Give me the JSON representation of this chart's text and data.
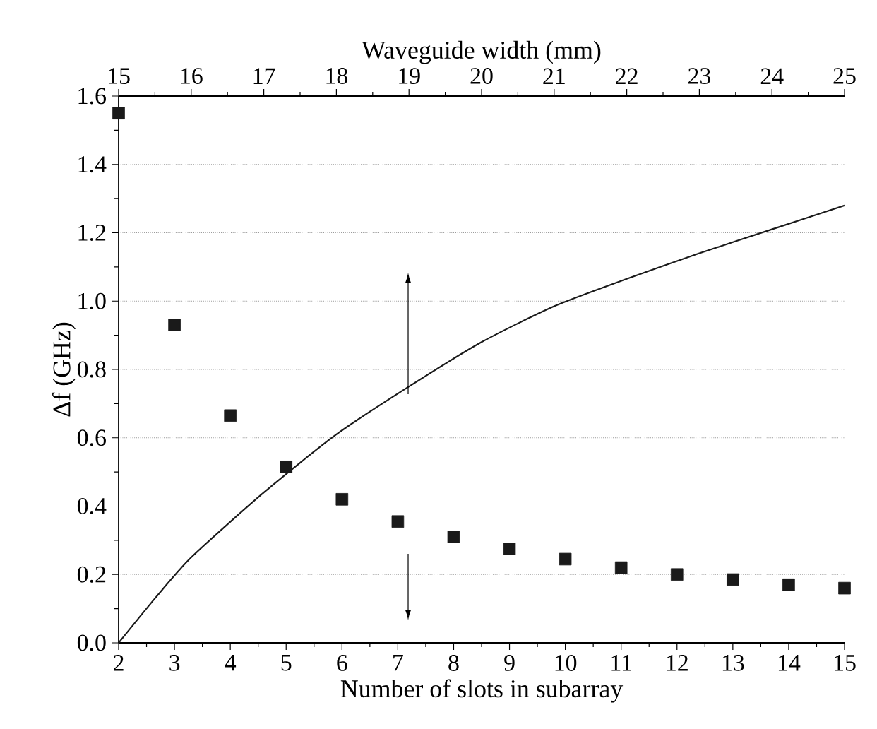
{
  "chart_data": {
    "type": "scatter",
    "xlabel": "Number of slots in subarray",
    "ylabel": "Δf (GHz)",
    "x2label": "Waveguide width (mm)",
    "x": [
      2,
      3,
      4,
      5,
      6,
      7,
      8,
      9,
      10,
      11,
      12,
      13,
      14,
      15
    ],
    "xlim": [
      2,
      15
    ],
    "xticks": [
      2,
      3,
      4,
      5,
      6,
      7,
      8,
      9,
      10,
      11,
      12,
      13,
      14,
      15
    ],
    "x2lim": [
      15,
      25
    ],
    "x2ticks": [
      15,
      16,
      17,
      18,
      19,
      20,
      21,
      22,
      23,
      24,
      25
    ],
    "ylim": [
      0,
      1.6
    ],
    "yticks": [
      {
        "value": 0,
        "label": "0.0"
      },
      {
        "value": 0.2,
        "label": "0.2"
      },
      {
        "value": 0.4,
        "label": "0.4"
      },
      {
        "value": 0.6,
        "label": "0.6"
      },
      {
        "value": 0.8,
        "label": "0.8"
      },
      {
        "value": 1.0,
        "label": "1.0"
      },
      {
        "value": 1.2,
        "label": "1.2"
      },
      {
        "value": 1.4,
        "label": "1.4"
      },
      {
        "value": 1.6,
        "label": "1.6"
      }
    ],
    "grid": "y",
    "series": [
      {
        "marker": "square",
        "color": "#1a1a1a",
        "values": [
          1.55,
          0.93,
          0.665,
          0.515,
          0.42,
          0.355,
          0.31,
          0.275,
          0.245,
          0.22,
          0.2,
          0.185,
          0.17,
          0.16
        ]
      },
      {
        "type": "line",
        "axis": "x2",
        "marker": "none",
        "line_style": "solid",
        "color": "#1a1a1a",
        "x": [
          15,
          15.5,
          16,
          17,
          18,
          19,
          20,
          21,
          22,
          23,
          24,
          25
        ],
        "values": [
          0,
          0.13,
          0.25,
          0.44,
          0.61,
          0.75,
          0.88,
          0.985,
          1.065,
          1.14,
          1.21,
          1.28
        ]
      }
    ]
  }
}
